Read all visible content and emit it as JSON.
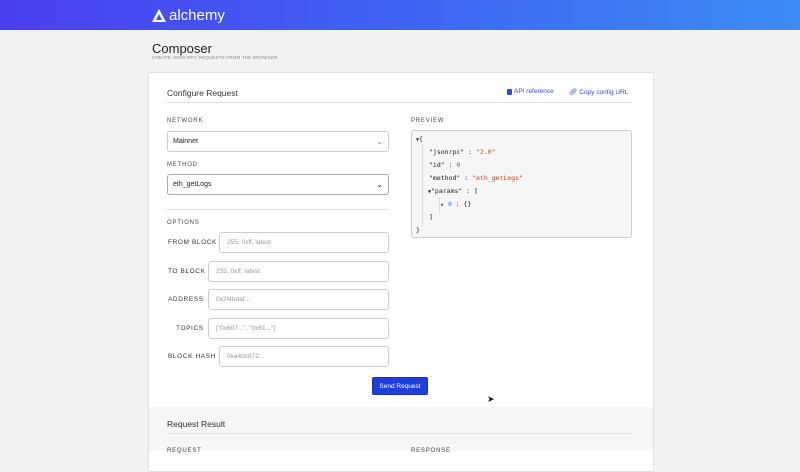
{
  "header": {
    "brand": "alchemy"
  },
  "page": {
    "title": "Composer",
    "subtitle": "CREATE JSON-RPC REQUESTS FROM THE BROWSER"
  },
  "configure": {
    "title": "Configure Request",
    "api_reference": "API reference",
    "copy_config_url": "Copy config URL",
    "network_label": "NETWORK",
    "network_value": "Mainnet",
    "method_label": "METHOD",
    "method_value": "eth_getLogs",
    "options_label": "OPTIONS",
    "fields": [
      {
        "label": "FROM BLOCK",
        "placeholder": "255, 0xff, latest"
      },
      {
        "label": "TO BLOCK",
        "placeholder": "255, 0xff, latest"
      },
      {
        "label": "ADDRESS",
        "placeholder": "0x2f4bdaf..."
      },
      {
        "label": "TOPICS",
        "placeholder": "[\"0x607...\", \"0x61...\"]"
      },
      {
        "label": "BLOCK HASH",
        "placeholder": "0xa4dc872..."
      }
    ],
    "send_button": "Send Request"
  },
  "preview": {
    "label": "PREVIEW",
    "open_brace": "{",
    "close_brace": "}",
    "k1": "\"jsonrpc\"",
    "v1": "\"2.0\"",
    "k2": "\"id\"",
    "v2": "0",
    "k3": "\"method\"",
    "v3": "\"eth_getLogs\"",
    "k4": "\"params\"",
    "open_bracket": "[",
    "close_bracket": "]",
    "item_index": "0",
    "item_value": "{}",
    "colon": ":"
  },
  "result": {
    "title": "Request Result",
    "request_label": "REQUEST",
    "response_label": "RESPONSE"
  },
  "colors": {
    "accent": "#1f3fd8",
    "header_start": "#4b3ff0",
    "header_end": "#3d8cf6",
    "string": "#c84a26",
    "number": "#3a7fd0"
  }
}
